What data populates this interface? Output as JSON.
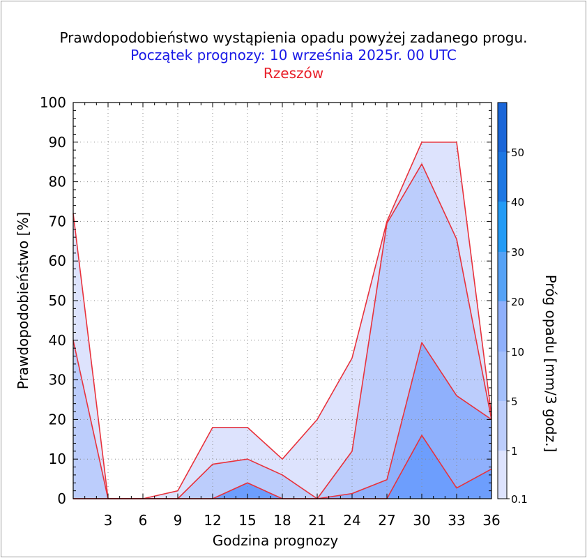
{
  "chart_data": {
    "type": "area",
    "title": "Prawdopodobieństwo wystąpienia opadu powyżej zadanego progu.",
    "subtitle": "Początek prognozy: 10 września 2025r. 00 UTC",
    "location": "Rzeszów",
    "xlabel": "Godzina prognozy",
    "ylabel": "Prawdopodobieństwo [%]",
    "colorbar_label": "Próg opadu [mm/3 godz.]",
    "x": [
      0,
      3,
      6,
      9,
      12,
      15,
      18,
      21,
      24,
      27,
      30,
      33,
      36
    ],
    "xticks": [
      "3",
      "6",
      "9",
      "12",
      "15",
      "18",
      "21",
      "24",
      "27",
      "30",
      "33",
      "36"
    ],
    "xlim": [
      0,
      36
    ],
    "ylim": [
      0,
      100
    ],
    "yticks": [
      "0",
      "10",
      "20",
      "30",
      "40",
      "50",
      "60",
      "70",
      "80",
      "90",
      "100"
    ],
    "grid": true,
    "series": [
      {
        "threshold": "0.1",
        "values": [
          72,
          0,
          0,
          2,
          18,
          18,
          10,
          20,
          35.5,
          70,
          90,
          90,
          21
        ],
        "color": "#dde3fd"
      },
      {
        "threshold": "1",
        "values": [
          40,
          0,
          0,
          0,
          8.7,
          10,
          6,
          0,
          12,
          69.5,
          84.5,
          65.5,
          20
        ],
        "color": "#bccdfc"
      },
      {
        "threshold": "5",
        "values": [
          0,
          0,
          0,
          0,
          0,
          0,
          0,
          0,
          1.3,
          4.8,
          39.4,
          26,
          20
        ],
        "color": "#8fb0fc"
      },
      {
        "threshold": "10",
        "values": [
          0,
          0,
          0,
          0,
          0,
          4,
          0,
          0,
          0,
          0,
          16,
          2.7,
          7.5
        ],
        "color": "#6d9efd"
      }
    ],
    "colorbar": {
      "ticks": [
        "0.1",
        "1",
        "5",
        "10",
        "20",
        "30",
        "40",
        "50"
      ],
      "colors": [
        "#dde3fd",
        "#bccdfc",
        "#a3bffc",
        "#8fb0fc",
        "#56a2f5",
        "#239bf5",
        "#1d77e3",
        "#1a66d8",
        "#1f4db9"
      ]
    },
    "line_color": "#e8323c"
  }
}
